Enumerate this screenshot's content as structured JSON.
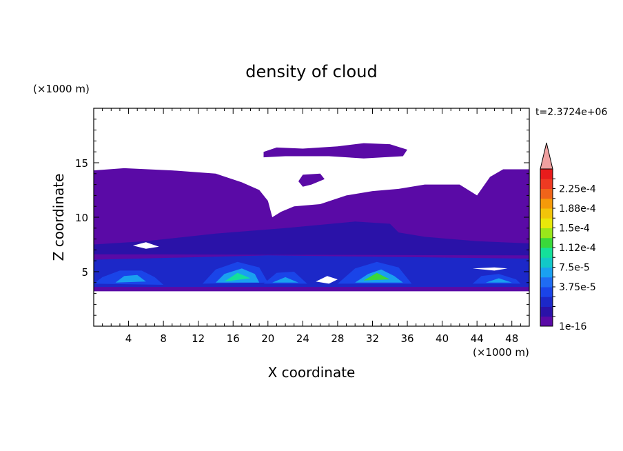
{
  "chart_data": {
    "type": "heatmap",
    "title": "density of cloud",
    "xlabel": "X coordinate",
    "ylabel": "Z coordinate",
    "x_unit": "(×1000 m)",
    "y_unit": "(×1000 m)",
    "time_label": "t=2.3724e+06",
    "xlim": [
      0,
      50
    ],
    "ylim": [
      0,
      20
    ],
    "xticks": [
      "4",
      "8",
      "12",
      "16",
      "20",
      "24",
      "28",
      "32",
      "36",
      "40",
      "44",
      "48"
    ],
    "yticks": [
      "5",
      "10",
      "15"
    ],
    "colorbar": {
      "labels": [
        "2.25e-4",
        "1.88e-4",
        "1.5e-4",
        "1.12e-4",
        "7.5e-5",
        "3.75e-5",
        "1e-16"
      ],
      "colors": [
        "#5a0aa6",
        "#2a12a8",
        "#1c28c8",
        "#1a44e8",
        "#1f6cf2",
        "#1aa0f0",
        "#12c8c8",
        "#14e09a",
        "#3ad83a",
        "#9ae61a",
        "#e8e80a",
        "#f2c40a",
        "#f59a0a",
        "#f0641a",
        "#ee3a22",
        "#e81c1c"
      ],
      "over_color": "#f0a0a0"
    },
    "regions": [
      {
        "level": 0,
        "name": "upper cloud layer",
        "outline": [
          [
            0,
            14.3
          ],
          [
            3.5,
            14.5
          ],
          [
            9,
            14.3
          ],
          [
            14,
            14
          ],
          [
            17,
            13.2
          ],
          [
            19,
            12.5
          ],
          [
            20,
            11.5
          ],
          [
            20.5,
            10
          ],
          [
            21.5,
            10.5
          ],
          [
            23,
            11
          ],
          [
            26,
            11.2
          ],
          [
            29,
            12
          ],
          [
            32,
            12.4
          ],
          [
            35,
            12.6
          ],
          [
            38,
            13
          ],
          [
            42,
            13
          ],
          [
            44,
            12
          ],
          [
            45.5,
            13.7
          ],
          [
            47,
            14.4
          ],
          [
            50,
            14.4
          ],
          [
            50,
            3.2
          ],
          [
            0,
            3.2
          ]
        ]
      },
      {
        "level": 0,
        "name": "high thin cloud",
        "outline": [
          [
            19.5,
            16
          ],
          [
            21,
            16.4
          ],
          [
            24,
            16.3
          ],
          [
            28,
            16.5
          ],
          [
            31,
            16.8
          ],
          [
            34,
            16.7
          ],
          [
            36,
            16.2
          ],
          [
            35.5,
            15.6
          ],
          [
            31,
            15.4
          ],
          [
            27,
            15.6
          ],
          [
            22,
            15.6
          ],
          [
            19.5,
            15.5
          ]
        ]
      },
      {
        "level": 0,
        "name": "small cloud patch",
        "outline": [
          [
            23.5,
            13.3
          ],
          [
            24,
            13.9
          ],
          [
            26,
            14
          ],
          [
            26.5,
            13.5
          ],
          [
            25,
            13
          ],
          [
            24,
            12.8
          ]
        ]
      },
      {
        "level": 1,
        "name": "mid-level band",
        "outline": [
          [
            0,
            7.5
          ],
          [
            6,
            7.8
          ],
          [
            14,
            8.5
          ],
          [
            22,
            9
          ],
          [
            30,
            9.6
          ],
          [
            34,
            9.4
          ],
          [
            35,
            8.6
          ],
          [
            38,
            8.2
          ],
          [
            44,
            7.8
          ],
          [
            50,
            7.6
          ],
          [
            50,
            6.5
          ],
          [
            0,
            6.6
          ]
        ]
      },
      {
        "level": 2,
        "name": "low band",
        "outline": [
          [
            0,
            6.1
          ],
          [
            10,
            6.3
          ],
          [
            20,
            6.5
          ],
          [
            30,
            6.4
          ],
          [
            40,
            6.3
          ],
          [
            50,
            6.2
          ],
          [
            50,
            3.6
          ],
          [
            0,
            3.6
          ]
        ]
      },
      {
        "level": 3,
        "name": "cell-1 outer",
        "outline": [
          [
            0,
            3.9
          ],
          [
            1,
            4.5
          ],
          [
            3,
            5.1
          ],
          [
            5.5,
            5.1
          ],
          [
            7,
            4.5
          ],
          [
            8,
            3.8
          ]
        ]
      },
      {
        "level": 5,
        "name": "cell-1 core",
        "outline": [
          [
            2.5,
            4
          ],
          [
            3.5,
            4.6
          ],
          [
            5,
            4.7
          ],
          [
            6,
            4.1
          ]
        ]
      },
      {
        "level": 3,
        "name": "cell-2 outer",
        "outline": [
          [
            12.5,
            3.9
          ],
          [
            14,
            5.2
          ],
          [
            16.5,
            5.9
          ],
          [
            19,
            5.4
          ],
          [
            20,
            4
          ]
        ]
      },
      {
        "level": 5,
        "name": "cell-2 mid",
        "outline": [
          [
            14,
            4
          ],
          [
            15,
            4.8
          ],
          [
            17,
            5.3
          ],
          [
            18.5,
            4.8
          ],
          [
            19,
            4
          ]
        ]
      },
      {
        "level": 7,
        "name": "cell-2 core",
        "outline": [
          [
            15,
            4.1
          ],
          [
            16.5,
            4.9
          ],
          [
            18,
            4.4
          ]
        ]
      },
      {
        "level": 3,
        "name": "cell-3 outer",
        "outline": [
          [
            19.5,
            3.9
          ],
          [
            21,
            4.9
          ],
          [
            23,
            5
          ],
          [
            24.5,
            3.9
          ]
        ]
      },
      {
        "level": 5,
        "name": "cell-3 core",
        "outline": [
          [
            20.5,
            4
          ],
          [
            22,
            4.5
          ],
          [
            23.5,
            4
          ]
        ]
      },
      {
        "level": 3,
        "name": "cell-4 outer",
        "outline": [
          [
            28,
            3.9
          ],
          [
            30,
            5.3
          ],
          [
            32.5,
            5.9
          ],
          [
            35,
            5.4
          ],
          [
            36.5,
            3.9
          ]
        ]
      },
      {
        "level": 5,
        "name": "cell-4 mid",
        "outline": [
          [
            30,
            4
          ],
          [
            31.5,
            4.8
          ],
          [
            33,
            5.2
          ],
          [
            34.5,
            4.6
          ],
          [
            35.5,
            4
          ]
        ]
      },
      {
        "level": 8,
        "name": "cell-4 core",
        "outline": [
          [
            31,
            4.2
          ],
          [
            32.5,
            4.9
          ],
          [
            34,
            4.3
          ]
        ]
      },
      {
        "level": 3,
        "name": "cell-5 outer",
        "outline": [
          [
            43.5,
            3.9
          ],
          [
            44.5,
            4.6
          ],
          [
            46.5,
            4.8
          ],
          [
            48.5,
            4.3
          ],
          [
            49,
            3.9
          ]
        ]
      },
      {
        "level": 5,
        "name": "cell-5 core",
        "outline": [
          [
            45,
            4
          ],
          [
            46.5,
            4.4
          ],
          [
            48,
            4
          ]
        ]
      },
      {
        "level": -1,
        "name": "clear gap 1",
        "outline": [
          [
            25.5,
            4.1
          ],
          [
            26.8,
            4.6
          ],
          [
            28,
            4.3
          ],
          [
            27,
            3.9
          ]
        ]
      },
      {
        "level": -1,
        "name": "clear gap 2",
        "outline": [
          [
            43.5,
            5.3
          ],
          [
            46,
            5.4
          ],
          [
            47.5,
            5.3
          ],
          [
            46,
            5.1
          ]
        ]
      },
      {
        "level": -1,
        "name": "clear gap 3",
        "outline": [
          [
            4.5,
            7.4
          ],
          [
            6,
            7.7
          ],
          [
            7.5,
            7.3
          ],
          [
            6,
            7.1
          ]
        ]
      }
    ]
  }
}
